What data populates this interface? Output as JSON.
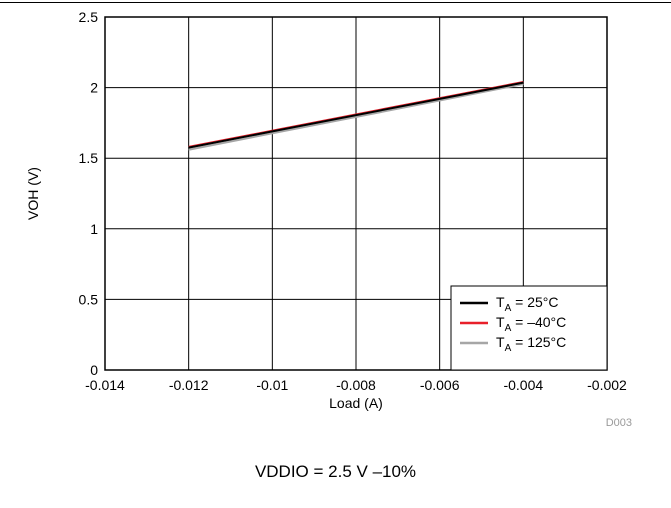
{
  "chart_data": {
    "type": "line",
    "xlabel": "Load (A)",
    "ylabel": "VOH (V)",
    "xlim": [
      -0.014,
      -0.002
    ],
    "ylim": [
      0,
      2.5
    ],
    "x_ticks": [
      -0.014,
      -0.012,
      -0.01,
      -0.008,
      -0.006,
      -0.004,
      -0.002
    ],
    "x_tick_labels": [
      "-0.014",
      "-0.012",
      "-0.01",
      "-0.008",
      "-0.006",
      "-0.004",
      "-0.002"
    ],
    "y_ticks": [
      0,
      0.5,
      1,
      1.5,
      2,
      2.5
    ],
    "y_tick_labels": [
      "0",
      "0.5",
      "1",
      "1.5",
      "2",
      "2.5"
    ],
    "grid": true,
    "legend_position": "bottom-right",
    "series": [
      {
        "name": "T_A = 25°C",
        "legend_main": "T",
        "legend_sub": "A",
        "legend_rest": " = 25°C",
        "color": "#000000",
        "x": [
          -0.012,
          -0.004
        ],
        "y": [
          1.575,
          2.035
        ]
      },
      {
        "name": "T_A = –40°C",
        "legend_main": "T",
        "legend_sub": "A",
        "legend_rest": " = –40°C",
        "color": "#e8202a",
        "x": [
          -0.012,
          -0.004
        ],
        "y": [
          1.58,
          2.04
        ]
      },
      {
        "name": "T_A = 125°C",
        "legend_main": "T",
        "legend_sub": "A",
        "legend_rest": " = 125°C",
        "color": "#a6a6a6",
        "x": [
          -0.012,
          -0.004
        ],
        "y": [
          1.56,
          2.025
        ]
      }
    ],
    "watermark": "D003"
  },
  "caption": "VDDIO = 2.5 V –10%"
}
